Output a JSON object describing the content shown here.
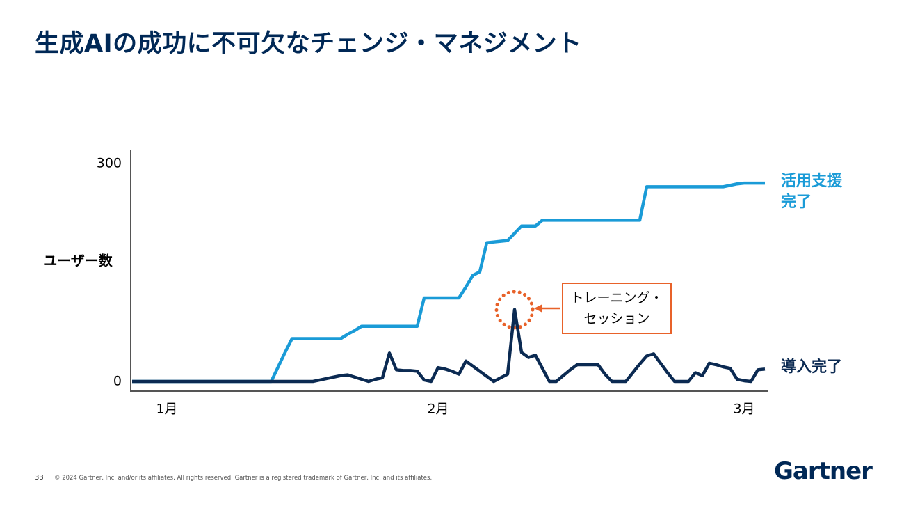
{
  "header": {
    "title": "生成AIの成功に不可欠なチェンジ・マネジメント"
  },
  "chart_data": {
    "type": "line",
    "ylabel": "ユーザー数",
    "ylim": [
      0,
      300
    ],
    "yticks": [
      0,
      300
    ],
    "xlim": [
      0,
      91
    ],
    "xticks": [
      {
        "value": 5,
        "label": "1月"
      },
      {
        "value": 44,
        "label": "2月"
      },
      {
        "value": 88,
        "label": "3月"
      }
    ],
    "annotation": "トレーニング・セッション",
    "series": [
      {
        "name": "活用支援完了",
        "color": "#1a9bd7",
        "values": [
          0,
          0,
          0,
          0,
          0,
          0,
          0,
          0,
          0,
          0,
          0,
          0,
          0,
          0,
          0,
          0,
          0,
          0,
          0,
          0,
          0,
          20,
          40,
          59,
          59,
          59,
          59,
          59,
          59,
          59,
          59,
          65,
          70,
          76,
          76,
          76,
          76,
          76,
          76,
          76,
          76,
          76,
          115,
          115,
          115,
          115,
          115,
          115,
          130,
          146,
          151,
          191,
          192,
          193,
          194,
          204,
          214,
          214,
          214,
          222,
          222,
          222,
          222,
          222,
          222,
          222,
          222,
          222,
          222,
          222,
          222,
          222,
          222,
          222,
          268,
          268,
          268,
          268,
          268,
          268,
          268,
          268,
          268,
          268,
          268,
          268,
          270,
          272,
          273,
          273,
          273,
          273
        ]
      },
      {
        "name": "導入完了",
        "color": "#0b2a52",
        "values": [
          0,
          0,
          0,
          0,
          0,
          0,
          0,
          0,
          0,
          0,
          0,
          0,
          0,
          0,
          0,
          0,
          0,
          0,
          0,
          0,
          0,
          0,
          0,
          0,
          0,
          0,
          0,
          2,
          4,
          6,
          8,
          9,
          6,
          3,
          0,
          3,
          5,
          39,
          16,
          15,
          15,
          14,
          2,
          0,
          19,
          17,
          14,
          10,
          28,
          21,
          14,
          7,
          0,
          5,
          10,
          99,
          40,
          33,
          36,
          18,
          0,
          0,
          8,
          16,
          23,
          23,
          23,
          23,
          10,
          0,
          0,
          0,
          12,
          24,
          35,
          38,
          25,
          12,
          0,
          0,
          0,
          12,
          8,
          25,
          23,
          20,
          18,
          3,
          1,
          0,
          16,
          17
        ]
      }
    ]
  },
  "footer": {
    "page": "33",
    "copyright": "© 2024 Gartner, Inc. and/or its affiliates. All rights reserved. Gartner is a registered trademark of Gartner, Inc. and its affiliates.",
    "logo": "Gartner"
  }
}
